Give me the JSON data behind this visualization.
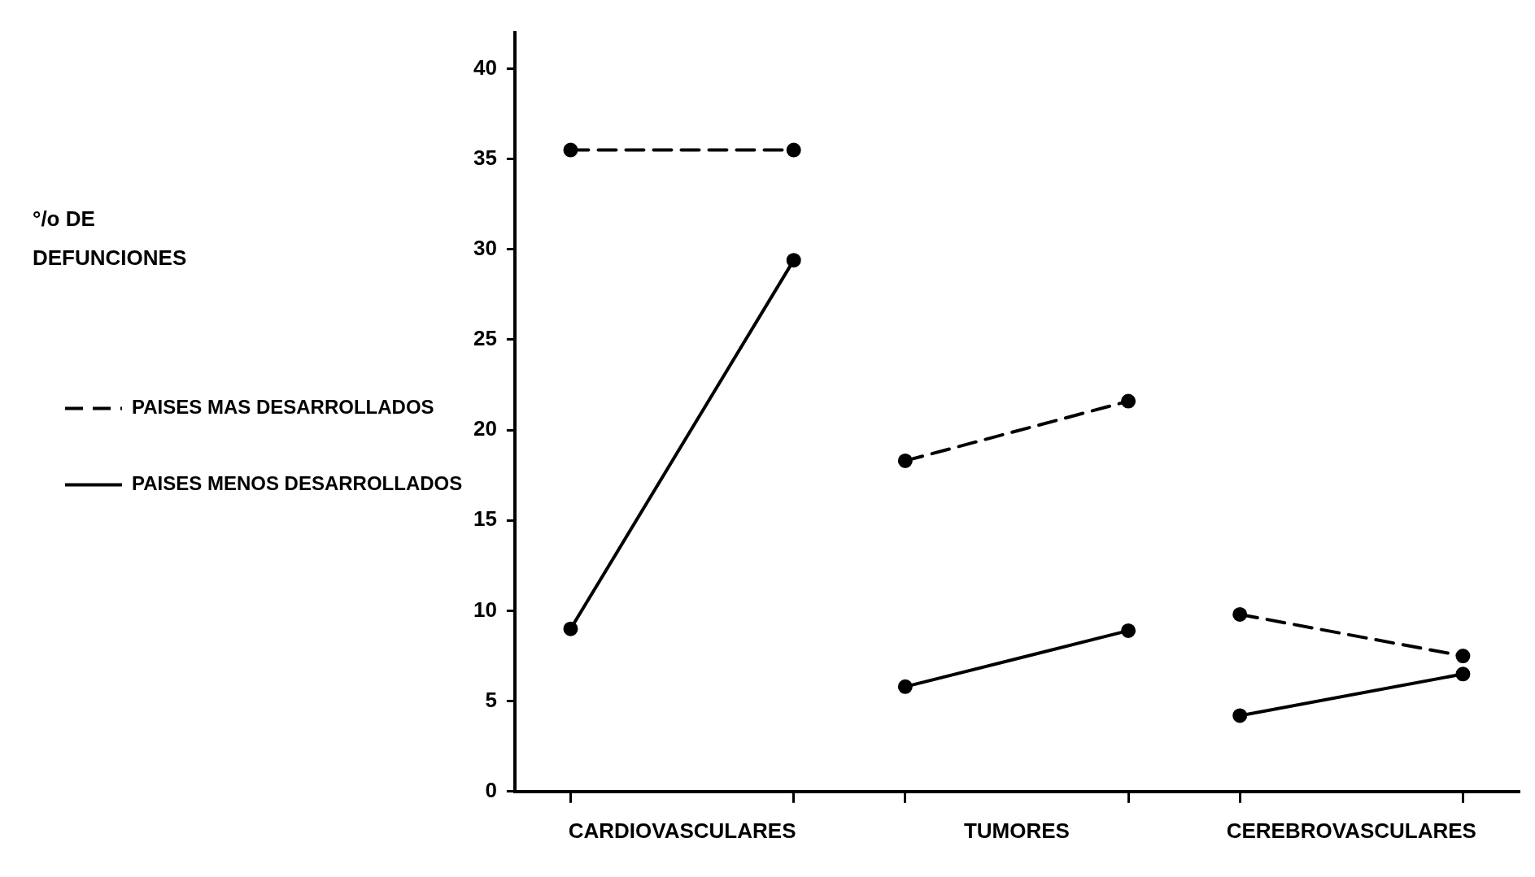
{
  "chart_data": {
    "type": "line",
    "annotations": [
      "°/o DE DEFUNCIONES"
    ],
    "categories": [
      null,
      "CARDIOVASCULARES",
      null,
      null,
      "TUMORES",
      null,
      null,
      "CEREBROVASCULARES",
      null
    ],
    "ylim": [
      0,
      42
    ],
    "yticks": [
      0,
      5,
      10,
      15,
      20,
      25,
      30,
      35,
      40
    ],
    "series": [
      {
        "name": "PAISES MAS DESARROLLADOS",
        "color": "#000000",
        "line_style": "dashed",
        "values": [
          35.5,
          null,
          35.5,
          18.3,
          null,
          21.6,
          9.8,
          null,
          7.5
        ]
      },
      {
        "name": "PAISES MENOS DESARROLLADOS",
        "color": "#000000",
        "line_style": "solid",
        "values": [
          9.0,
          null,
          29.4,
          5.8,
          null,
          8.9,
          4.2,
          null,
          6.5
        ]
      }
    ],
    "marker": "circle",
    "grid": false,
    "legend": "left"
  }
}
